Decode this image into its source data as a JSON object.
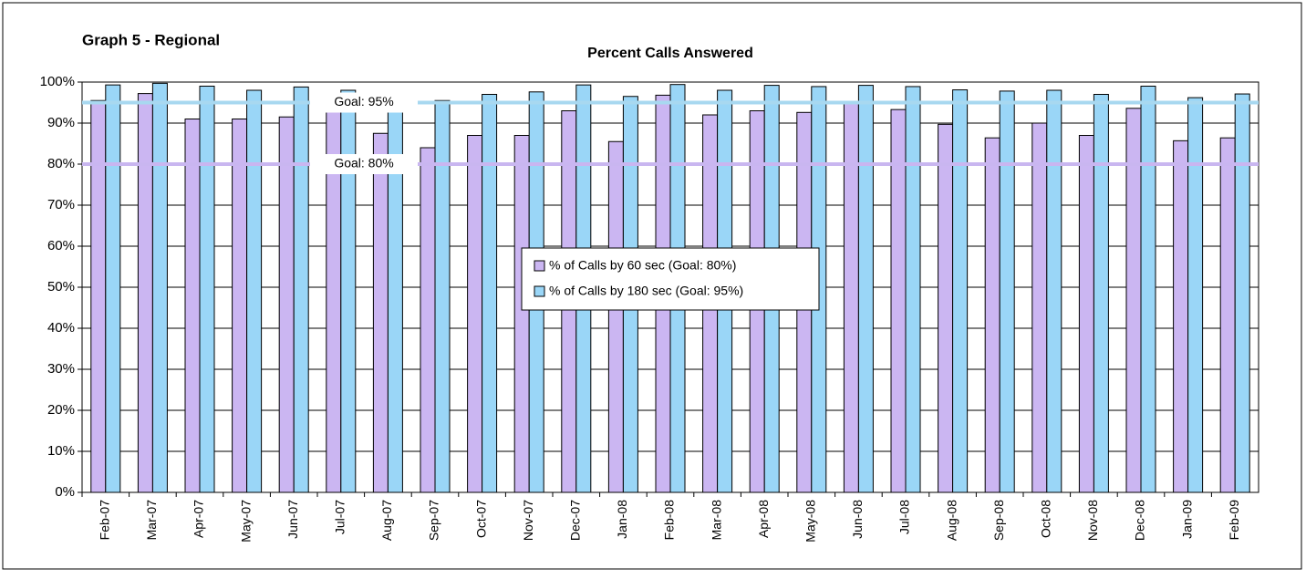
{
  "chart_data": {
    "type": "bar",
    "title": "Percent Calls Answered",
    "subtitle": "Graph 5 - Regional",
    "categories": [
      "Feb-07",
      "Mar-07",
      "Apr-07",
      "May-07",
      "Jun-07",
      "Jul-07",
      "Aug-07",
      "Sep-07",
      "Oct-07",
      "Nov-07",
      "Dec-07",
      "Jan-08",
      "Feb-08",
      "Mar-08",
      "Apr-08",
      "May-08",
      "Jun-08",
      "Jul-08",
      "Aug-08",
      "Sep-08",
      "Oct-08",
      "Nov-08",
      "Dec-08",
      "Jan-09",
      "Feb-09"
    ],
    "series": [
      {
        "name": "% of Calls by 60 sec (Goal: 80%)",
        "color": "#cbb6f2",
        "values": [
          95.5,
          97.2,
          91,
          91,
          91.5,
          93,
          87.5,
          84,
          87,
          87,
          93,
          85.5,
          96.8,
          92,
          93,
          92.6,
          95,
          93.3,
          89.7,
          86.4,
          90,
          87,
          93.6,
          85.7,
          86.4
        ]
      },
      {
        "name": "% of Calls by 180 sec (Goal: 95%)",
        "color": "#9ad6f7",
        "values": [
          99.3,
          99.7,
          99,
          98,
          98.8,
          98,
          97,
          95.5,
          97,
          97.6,
          99.3,
          96.5,
          99.4,
          98,
          99.2,
          98.9,
          99.2,
          98.9,
          98.1,
          97.8,
          98,
          97,
          99,
          96.2,
          97.1
        ]
      }
    ],
    "goal_lines": [
      {
        "label": "Goal:  95%",
        "value": 95,
        "color": "#a8d8f0"
      },
      {
        "label": "Goal:  80%",
        "value": 80,
        "color": "#c9b6f0"
      }
    ],
    "ylim": [
      0,
      100
    ],
    "yticks": [
      {
        "value": 0,
        "label": "0%"
      },
      {
        "value": 10,
        "label": "10%"
      },
      {
        "value": 20,
        "label": "20%"
      },
      {
        "value": 30,
        "label": "30%"
      },
      {
        "value": 40,
        "label": "40%"
      },
      {
        "value": 50,
        "label": "50%"
      },
      {
        "value": 60,
        "label": "60%"
      },
      {
        "value": 70,
        "label": "70%"
      },
      {
        "value": 80,
        "label": "80%"
      },
      {
        "value": 90,
        "label": "90%"
      },
      {
        "value": 100,
        "label": "100%"
      }
    ],
    "grid": true
  }
}
